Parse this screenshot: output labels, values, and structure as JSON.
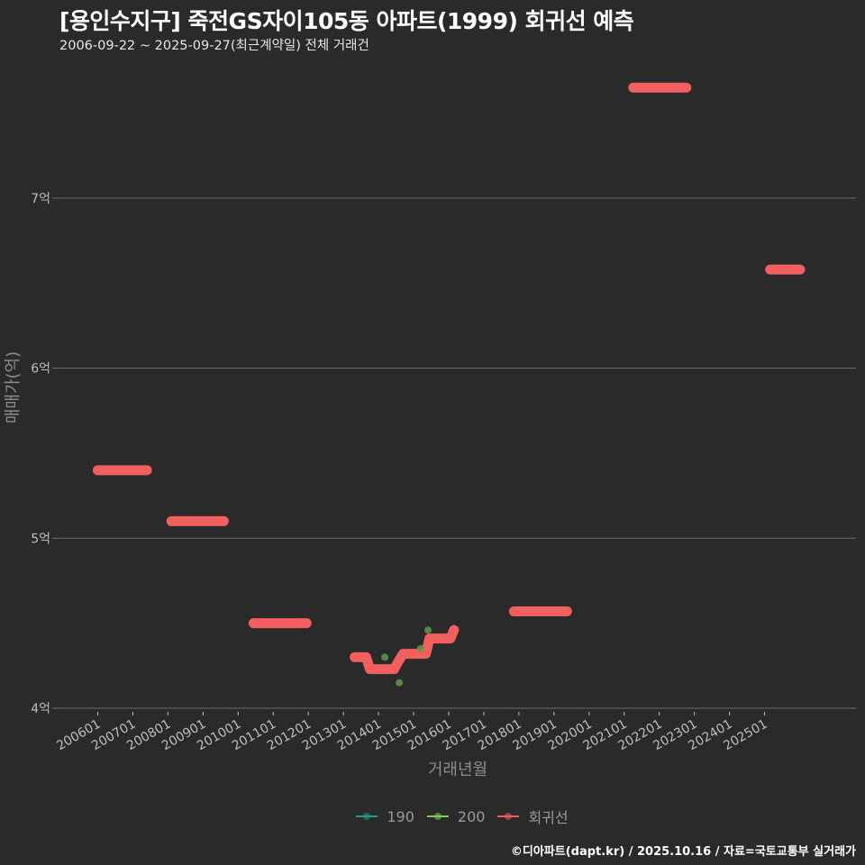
{
  "header": {
    "title": "[용인수지구] 죽전GS자이105동 아파트(1999) 회귀선 예측",
    "subtitle": "2006-09-22 ~ 2025-09-27(최근계약일) 전체 거래건"
  },
  "footer": {
    "credit": "©디아파트(dapt.kr) / 2025.10.16 / 자료=국토교통부 실거래가"
  },
  "legend": [
    {
      "label": "190",
      "color": "#1f9e89"
    },
    {
      "label": "200",
      "color": "#7ad151"
    },
    {
      "label": "회귀선",
      "color": "#f25f5f"
    }
  ],
  "colors": {
    "background": "#2b2a2b",
    "grid": "#6e6e6e",
    "regression": "#f25f5f",
    "series_200": "#5a9a4a",
    "axis_text": "#bdbdbd",
    "axis_title": "#8c8c8c"
  },
  "chart_data": {
    "type": "line",
    "title": "[용인수지구] 죽전GS자이105동 아파트(1999) 회귀선 예측",
    "subtitle": "2006-09-22 ~ 2025-09-27(최근계약일) 전체 거래건",
    "xlabel": "거래년월",
    "ylabel": "매매가(억)",
    "ylim": [
      4,
      7.7
    ],
    "yticks": [
      {
        "value": 4,
        "label": "4억"
      },
      {
        "value": 5,
        "label": "5억"
      },
      {
        "value": 6,
        "label": "6억"
      },
      {
        "value": 7,
        "label": "7억"
      }
    ],
    "xticks": [
      "200601",
      "200701",
      "200801",
      "200901",
      "201001",
      "201101",
      "201201",
      "201301",
      "201401",
      "201501",
      "201601",
      "201701",
      "201801",
      "201901",
      "202001",
      "202101",
      "202201",
      "202301",
      "202401",
      "202501"
    ],
    "xlim_years": [
      2006.0,
      2025.0
    ],
    "grid": true,
    "legend_position": "bottom",
    "series": [
      {
        "name": "회귀선",
        "kind": "regression-segments",
        "segments": [
          {
            "x_start": 2005.87,
            "x_end": 2007.53,
            "value": 5.4
          },
          {
            "x_start": 2007.97,
            "x_end": 2009.72,
            "value": 5.1
          },
          {
            "x_start": 2010.31,
            "x_end": 2012.08,
            "value": 4.5
          },
          {
            "x_start": 2017.73,
            "x_end": 2019.5,
            "value": 4.57
          },
          {
            "x_start": 2021.13,
            "x_end": 2022.9,
            "value": 7.65
          },
          {
            "x_start": 2025.03,
            "x_end": 2026.14,
            "value": 6.58
          }
        ],
        "path": [
          {
            "x": 2013.32,
            "y": 4.3
          },
          {
            "x": 2013.65,
            "y": 4.3
          },
          {
            "x": 2013.75,
            "y": 4.23
          },
          {
            "x": 2014.45,
            "y": 4.23
          },
          {
            "x": 2014.55,
            "y": 4.27
          },
          {
            "x": 2014.7,
            "y": 4.32
          },
          {
            "x": 2015.35,
            "y": 4.32
          },
          {
            "x": 2015.45,
            "y": 4.41
          },
          {
            "x": 2016.05,
            "y": 4.41
          },
          {
            "x": 2016.15,
            "y": 4.46
          }
        ]
      },
      {
        "name": "200",
        "kind": "scatter",
        "points": [
          {
            "x": 2014.18,
            "y": 4.3
          },
          {
            "x": 2014.59,
            "y": 4.15
          },
          {
            "x": 2015.2,
            "y": 4.35
          },
          {
            "x": 2015.41,
            "y": 4.46
          }
        ]
      },
      {
        "name": "190",
        "kind": "scatter",
        "points": []
      }
    ]
  }
}
